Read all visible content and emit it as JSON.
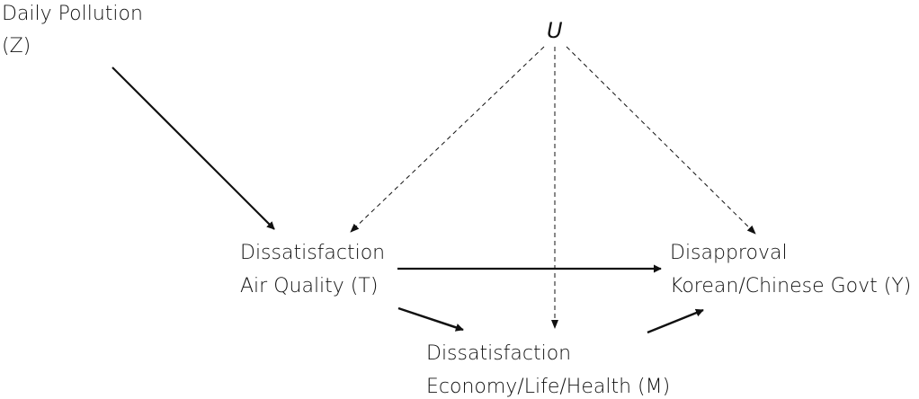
{
  "nodes": [
    {
      "id": "Z",
      "label": [
        "Daily Pollution",
        "(Z)"
      ]
    },
    {
      "id": "U",
      "label": [
        "U"
      ]
    },
    {
      "id": "T",
      "label": [
        "Dissatisfaction",
        "Air Quality (T)"
      ]
    },
    {
      "id": "Y",
      "label": [
        "Disapproval",
        "Korean/Chinese Govt (Y)"
      ]
    },
    {
      "id": "M",
      "label": [
        "Dissatisfaction",
        "Economy/Life/Health (M)"
      ]
    }
  ]
}
